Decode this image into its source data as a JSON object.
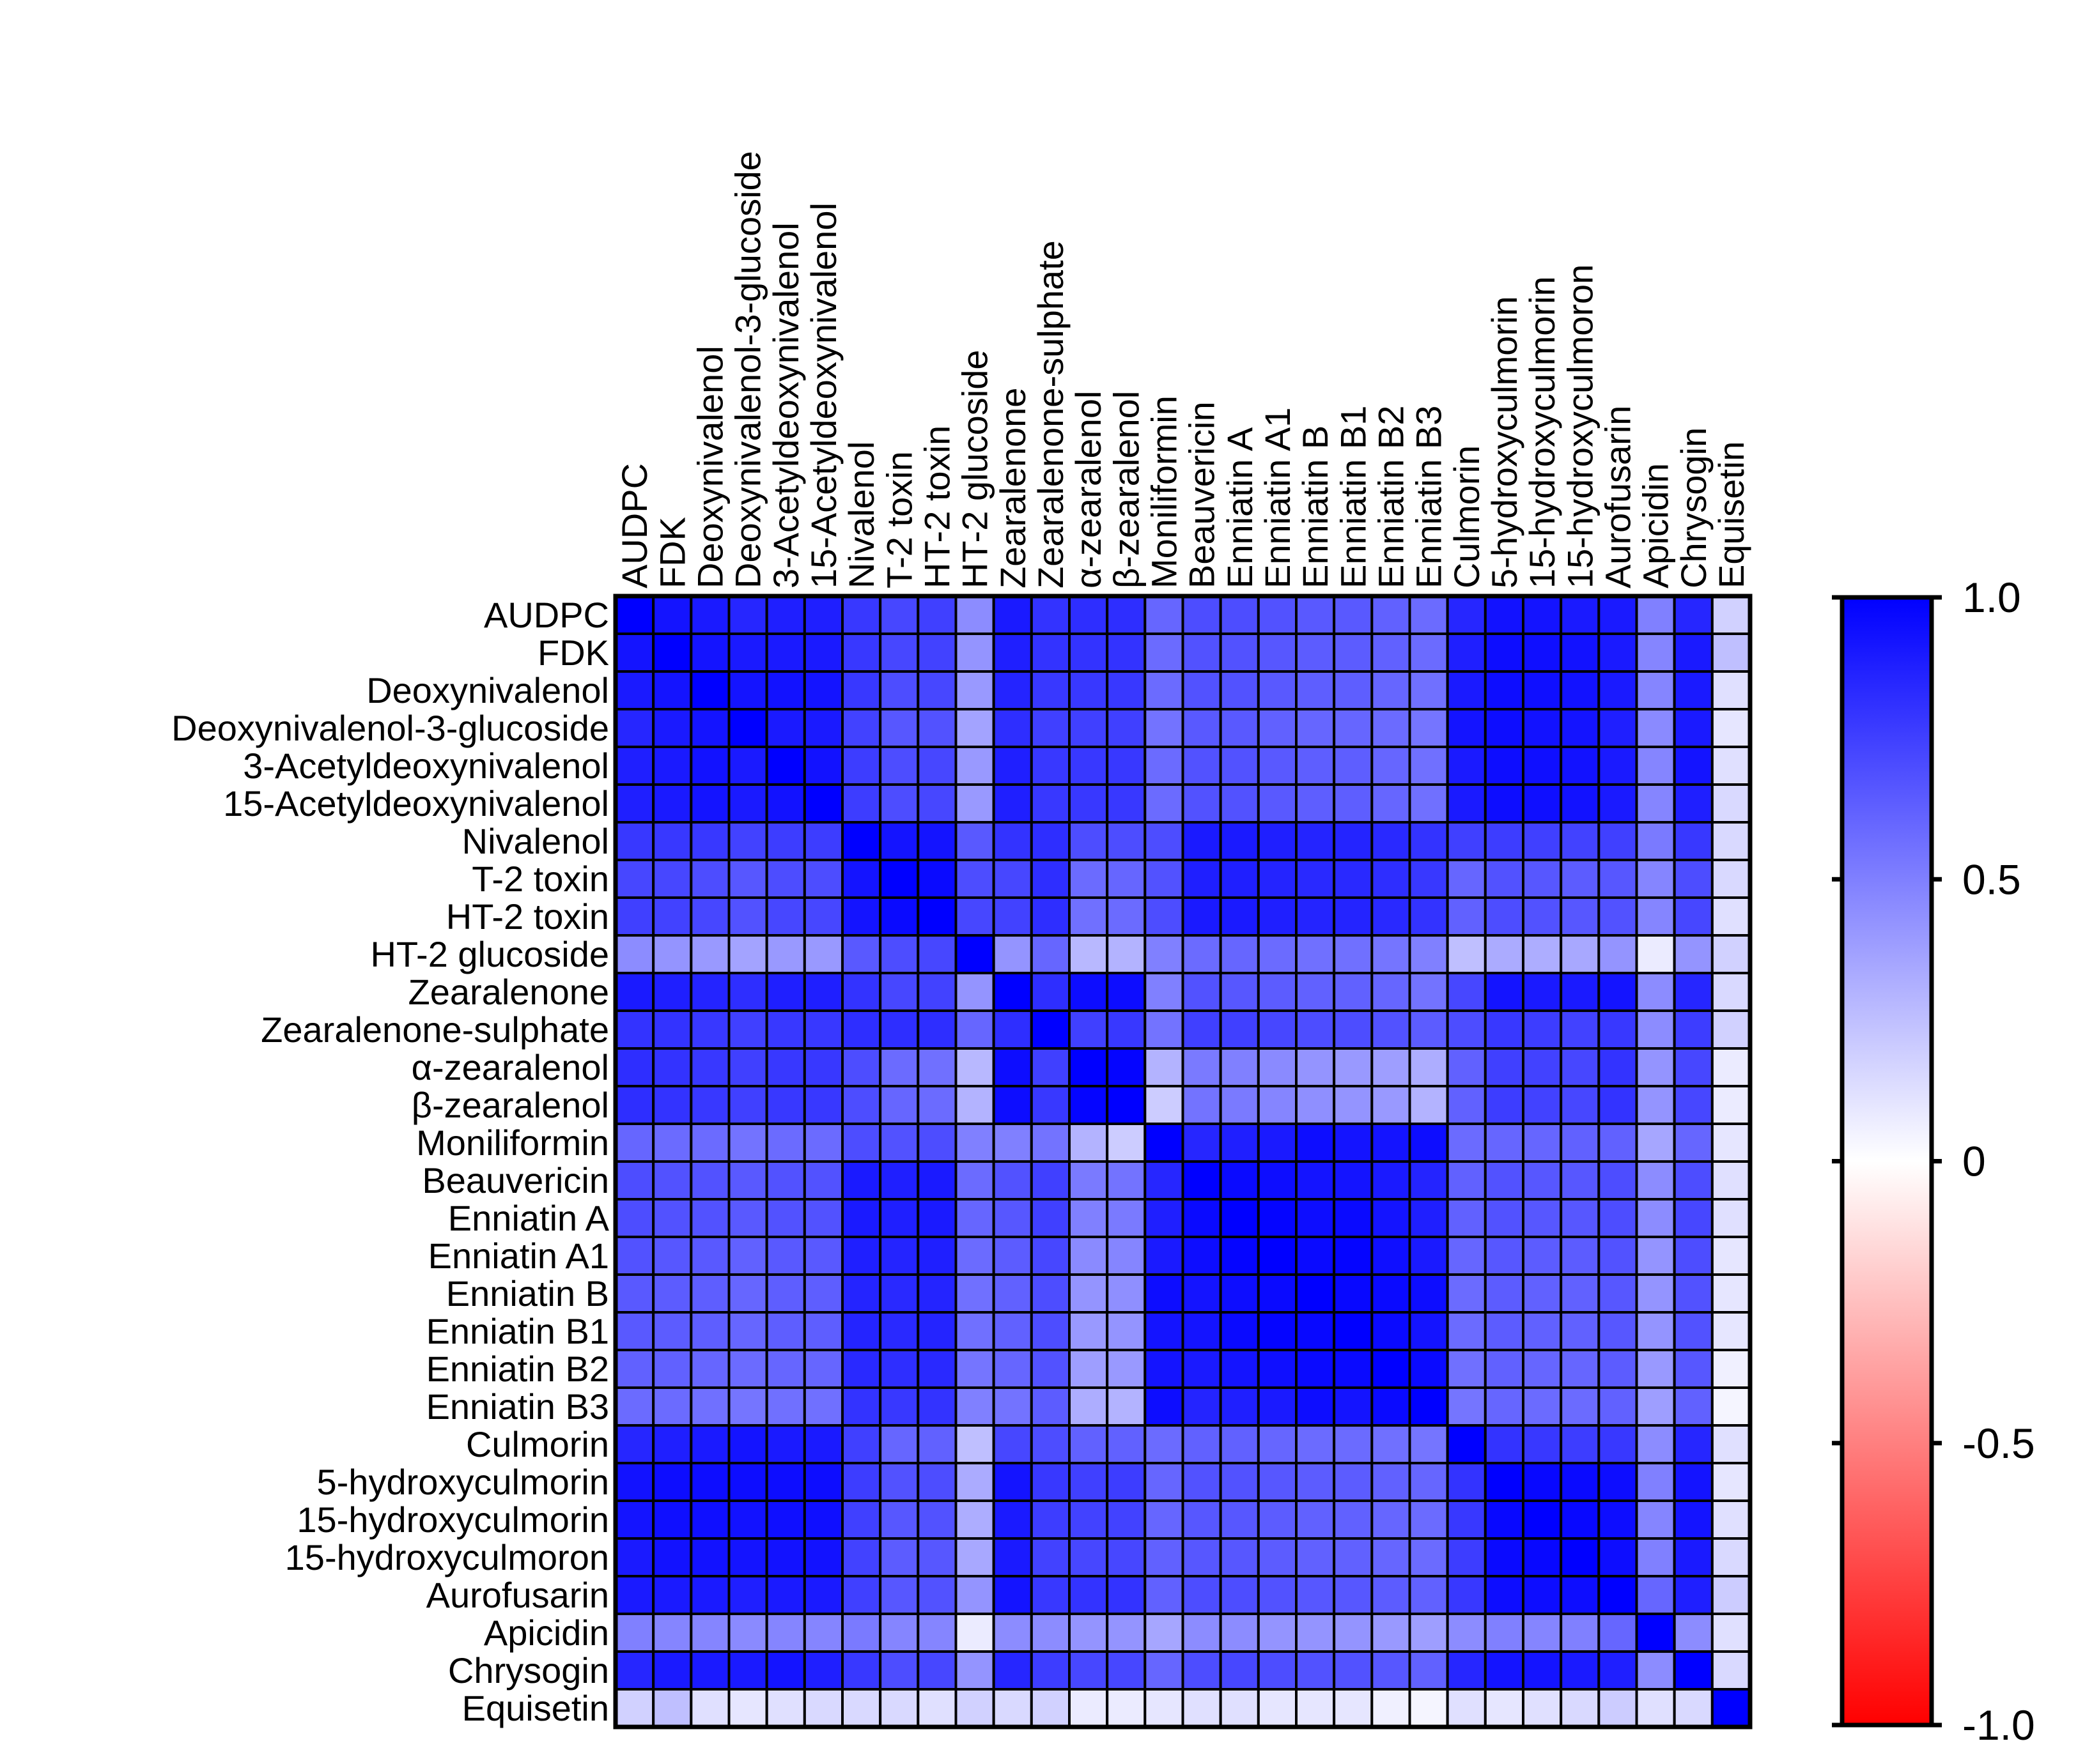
{
  "chart_data": {
    "type": "heatmap",
    "title": "",
    "labels": [
      "AUDPC",
      "FDK",
      "Deoxynivalenol",
      "Deoxynivalenol-3-glucoside",
      "3-Acetyldeoxynivalenol",
      "15-Acetyldeoxynivalenol",
      "Nivalenol",
      "T-2 toxin",
      "HT-2 toxin",
      "HT-2 glucoside",
      "Zearalenone",
      "Zearalenone-sulphate",
      "α-zearalenol",
      "β-zearalenol",
      "Moniliformin",
      "Beauvericin",
      "Enniatin A",
      "Enniatin A1",
      "Enniatin B",
      "Enniatin B1",
      "Enniatin B2",
      "Enniatin B3",
      "Culmorin",
      "5-hydroxyculmorin",
      "15-hydroxyculmorin",
      "15-hydroxyculmoron",
      "Aurofusarin",
      "Apicidin",
      "Chrysogin",
      "Equisetin"
    ],
    "values": [
      [
        1.0,
        0.92,
        0.9,
        0.85,
        0.88,
        0.88,
        0.78,
        0.72,
        0.75,
        0.45,
        0.9,
        0.8,
        0.82,
        0.82,
        0.6,
        0.7,
        0.7,
        0.68,
        0.65,
        0.65,
        0.62,
        0.58,
        0.85,
        0.93,
        0.92,
        0.9,
        0.9,
        0.5,
        0.85,
        0.18
      ],
      [
        0.92,
        1.0,
        0.92,
        0.9,
        0.9,
        0.9,
        0.78,
        0.72,
        0.74,
        0.42,
        0.88,
        0.8,
        0.8,
        0.8,
        0.58,
        0.68,
        0.68,
        0.66,
        0.64,
        0.64,
        0.62,
        0.58,
        0.88,
        0.95,
        0.94,
        0.93,
        0.9,
        0.48,
        0.9,
        0.25
      ],
      [
        0.9,
        0.92,
        1.0,
        0.92,
        0.93,
        0.92,
        0.78,
        0.7,
        0.72,
        0.4,
        0.86,
        0.78,
        0.78,
        0.78,
        0.58,
        0.68,
        0.68,
        0.65,
        0.63,
        0.63,
        0.6,
        0.56,
        0.9,
        0.95,
        0.94,
        0.93,
        0.9,
        0.48,
        0.9,
        0.12
      ],
      [
        0.85,
        0.9,
        0.92,
        1.0,
        0.9,
        0.9,
        0.74,
        0.66,
        0.68,
        0.36,
        0.82,
        0.75,
        0.75,
        0.75,
        0.55,
        0.65,
        0.65,
        0.62,
        0.6,
        0.6,
        0.58,
        0.54,
        0.92,
        0.95,
        0.93,
        0.92,
        0.88,
        0.46,
        0.9,
        0.1
      ],
      [
        0.88,
        0.9,
        0.93,
        0.9,
        1.0,
        0.93,
        0.76,
        0.7,
        0.72,
        0.4,
        0.88,
        0.78,
        0.78,
        0.78,
        0.58,
        0.68,
        0.68,
        0.65,
        0.63,
        0.63,
        0.6,
        0.56,
        0.9,
        0.95,
        0.94,
        0.93,
        0.9,
        0.48,
        0.92,
        0.12
      ],
      [
        0.88,
        0.9,
        0.92,
        0.9,
        0.93,
        1.0,
        0.76,
        0.7,
        0.72,
        0.4,
        0.88,
        0.78,
        0.78,
        0.78,
        0.58,
        0.68,
        0.68,
        0.65,
        0.63,
        0.63,
        0.6,
        0.56,
        0.9,
        0.95,
        0.94,
        0.93,
        0.9,
        0.48,
        0.88,
        0.15
      ],
      [
        0.78,
        0.78,
        0.78,
        0.74,
        0.76,
        0.76,
        1.0,
        0.92,
        0.92,
        0.65,
        0.8,
        0.82,
        0.7,
        0.7,
        0.7,
        0.9,
        0.9,
        0.88,
        0.86,
        0.86,
        0.84,
        0.8,
        0.75,
        0.76,
        0.75,
        0.74,
        0.75,
        0.52,
        0.78,
        0.15
      ],
      [
        0.72,
        0.72,
        0.7,
        0.66,
        0.7,
        0.7,
        0.92,
        1.0,
        0.96,
        0.7,
        0.72,
        0.82,
        0.58,
        0.6,
        0.68,
        0.88,
        0.88,
        0.86,
        0.84,
        0.84,
        0.82,
        0.78,
        0.6,
        0.68,
        0.66,
        0.64,
        0.66,
        0.48,
        0.7,
        0.15
      ],
      [
        0.75,
        0.74,
        0.72,
        0.68,
        0.72,
        0.72,
        0.92,
        0.96,
        1.0,
        0.72,
        0.74,
        0.82,
        0.56,
        0.58,
        0.7,
        0.9,
        0.9,
        0.88,
        0.86,
        0.86,
        0.84,
        0.8,
        0.62,
        0.7,
        0.68,
        0.66,
        0.68,
        0.48,
        0.72,
        0.12
      ],
      [
        0.45,
        0.42,
        0.4,
        0.36,
        0.4,
        0.4,
        0.65,
        0.7,
        0.72,
        1.0,
        0.42,
        0.6,
        0.28,
        0.3,
        0.5,
        0.58,
        0.6,
        0.58,
        0.56,
        0.56,
        0.54,
        0.5,
        0.25,
        0.33,
        0.32,
        0.34,
        0.42,
        0.08,
        0.42,
        0.18
      ],
      [
        0.9,
        0.88,
        0.86,
        0.82,
        0.88,
        0.88,
        0.8,
        0.72,
        0.74,
        0.42,
        1.0,
        0.82,
        0.95,
        0.95,
        0.5,
        0.68,
        0.66,
        0.64,
        0.62,
        0.62,
        0.6,
        0.55,
        0.72,
        0.92,
        0.9,
        0.9,
        0.92,
        0.45,
        0.85,
        0.15
      ],
      [
        0.8,
        0.8,
        0.78,
        0.75,
        0.78,
        0.78,
        0.82,
        0.82,
        0.82,
        0.6,
        0.82,
        1.0,
        0.75,
        0.78,
        0.55,
        0.75,
        0.75,
        0.72,
        0.7,
        0.7,
        0.68,
        0.64,
        0.7,
        0.78,
        0.76,
        0.74,
        0.78,
        0.45,
        0.76,
        0.18
      ],
      [
        0.82,
        0.8,
        0.78,
        0.75,
        0.78,
        0.78,
        0.7,
        0.58,
        0.56,
        0.28,
        0.95,
        0.75,
        1.0,
        0.98,
        0.3,
        0.52,
        0.5,
        0.46,
        0.42,
        0.4,
        0.38,
        0.32,
        0.62,
        0.75,
        0.74,
        0.72,
        0.8,
        0.42,
        0.72,
        0.08
      ],
      [
        0.82,
        0.8,
        0.78,
        0.75,
        0.78,
        0.78,
        0.7,
        0.6,
        0.58,
        0.3,
        0.95,
        0.78,
        0.98,
        1.0,
        0.2,
        0.55,
        0.52,
        0.48,
        0.44,
        0.42,
        0.4,
        0.3,
        0.62,
        0.76,
        0.74,
        0.72,
        0.8,
        0.42,
        0.72,
        0.08
      ],
      [
        0.6,
        0.58,
        0.58,
        0.55,
        0.58,
        0.58,
        0.7,
        0.68,
        0.7,
        0.5,
        0.5,
        0.55,
        0.3,
        0.2,
        1.0,
        0.85,
        0.88,
        0.9,
        0.95,
        0.92,
        0.92,
        0.95,
        0.58,
        0.6,
        0.6,
        0.62,
        0.62,
        0.35,
        0.6,
        0.1
      ],
      [
        0.7,
        0.68,
        0.68,
        0.65,
        0.68,
        0.68,
        0.9,
        0.88,
        0.9,
        0.58,
        0.68,
        0.75,
        0.52,
        0.55,
        0.85,
        1.0,
        0.96,
        0.95,
        0.92,
        0.92,
        0.9,
        0.86,
        0.62,
        0.68,
        0.66,
        0.66,
        0.7,
        0.45,
        0.7,
        0.12
      ],
      [
        0.7,
        0.68,
        0.68,
        0.65,
        0.68,
        0.68,
        0.9,
        0.88,
        0.9,
        0.6,
        0.66,
        0.75,
        0.5,
        0.52,
        0.88,
        0.96,
        1.0,
        0.98,
        0.95,
        0.96,
        0.92,
        0.88,
        0.62,
        0.68,
        0.66,
        0.66,
        0.7,
        0.45,
        0.72,
        0.12
      ],
      [
        0.68,
        0.66,
        0.65,
        0.62,
        0.65,
        0.65,
        0.88,
        0.86,
        0.88,
        0.58,
        0.64,
        0.72,
        0.46,
        0.48,
        0.9,
        0.95,
        0.98,
        1.0,
        0.96,
        0.98,
        0.94,
        0.9,
        0.6,
        0.66,
        0.64,
        0.64,
        0.68,
        0.42,
        0.7,
        0.1
      ],
      [
        0.65,
        0.64,
        0.63,
        0.6,
        0.63,
        0.63,
        0.86,
        0.84,
        0.86,
        0.56,
        0.62,
        0.7,
        0.42,
        0.44,
        0.95,
        0.92,
        0.95,
        0.96,
        1.0,
        0.97,
        0.96,
        0.95,
        0.58,
        0.64,
        0.62,
        0.62,
        0.66,
        0.42,
        0.68,
        0.1
      ],
      [
        0.65,
        0.64,
        0.63,
        0.6,
        0.63,
        0.63,
        0.86,
        0.84,
        0.86,
        0.56,
        0.62,
        0.7,
        0.4,
        0.42,
        0.92,
        0.92,
        0.96,
        0.98,
        0.97,
        1.0,
        0.96,
        0.92,
        0.58,
        0.64,
        0.62,
        0.62,
        0.66,
        0.42,
        0.68,
        0.1
      ],
      [
        0.62,
        0.62,
        0.6,
        0.58,
        0.6,
        0.6,
        0.84,
        0.82,
        0.84,
        0.54,
        0.6,
        0.68,
        0.38,
        0.4,
        0.92,
        0.9,
        0.92,
        0.94,
        0.96,
        0.96,
        1.0,
        0.96,
        0.56,
        0.62,
        0.6,
        0.6,
        0.64,
        0.4,
        0.66,
        0.06
      ],
      [
        0.58,
        0.58,
        0.56,
        0.54,
        0.56,
        0.56,
        0.8,
        0.78,
        0.8,
        0.5,
        0.55,
        0.64,
        0.32,
        0.3,
        0.95,
        0.86,
        0.88,
        0.9,
        0.95,
        0.92,
        0.96,
        1.0,
        0.54,
        0.6,
        0.58,
        0.58,
        0.62,
        0.38,
        0.62,
        0.04
      ],
      [
        0.85,
        0.88,
        0.9,
        0.92,
        0.9,
        0.9,
        0.75,
        0.6,
        0.62,
        0.25,
        0.72,
        0.7,
        0.62,
        0.62,
        0.58,
        0.62,
        0.62,
        0.6,
        0.58,
        0.58,
        0.56,
        0.54,
        1.0,
        0.8,
        0.78,
        0.76,
        0.78,
        0.45,
        0.85,
        0.12
      ],
      [
        0.93,
        0.95,
        0.95,
        0.95,
        0.95,
        0.95,
        0.76,
        0.68,
        0.7,
        0.33,
        0.92,
        0.78,
        0.75,
        0.76,
        0.6,
        0.68,
        0.68,
        0.66,
        0.64,
        0.64,
        0.62,
        0.6,
        0.8,
        1.0,
        0.97,
        0.96,
        0.95,
        0.5,
        0.92,
        0.1
      ],
      [
        0.92,
        0.94,
        0.94,
        0.93,
        0.94,
        0.94,
        0.75,
        0.66,
        0.68,
        0.32,
        0.9,
        0.76,
        0.74,
        0.74,
        0.6,
        0.66,
        0.66,
        0.64,
        0.62,
        0.62,
        0.6,
        0.58,
        0.78,
        0.97,
        1.0,
        0.97,
        0.95,
        0.48,
        0.92,
        0.12
      ],
      [
        0.9,
        0.93,
        0.93,
        0.92,
        0.93,
        0.93,
        0.74,
        0.64,
        0.66,
        0.34,
        0.9,
        0.74,
        0.72,
        0.72,
        0.62,
        0.66,
        0.66,
        0.64,
        0.62,
        0.62,
        0.6,
        0.58,
        0.76,
        0.96,
        0.97,
        1.0,
        0.95,
        0.5,
        0.9,
        0.15
      ],
      [
        0.9,
        0.9,
        0.9,
        0.88,
        0.9,
        0.9,
        0.75,
        0.66,
        0.68,
        0.42,
        0.92,
        0.78,
        0.8,
        0.8,
        0.62,
        0.7,
        0.7,
        0.68,
        0.66,
        0.66,
        0.64,
        0.62,
        0.78,
        0.95,
        0.95,
        0.95,
        1.0,
        0.6,
        0.88,
        0.2
      ],
      [
        0.5,
        0.48,
        0.48,
        0.46,
        0.48,
        0.48,
        0.52,
        0.48,
        0.48,
        0.08,
        0.45,
        0.45,
        0.42,
        0.42,
        0.35,
        0.45,
        0.45,
        0.42,
        0.42,
        0.42,
        0.4,
        0.38,
        0.45,
        0.5,
        0.48,
        0.5,
        0.6,
        1.0,
        0.45,
        0.12
      ],
      [
        0.85,
        0.9,
        0.9,
        0.9,
        0.92,
        0.88,
        0.78,
        0.7,
        0.72,
        0.42,
        0.85,
        0.76,
        0.72,
        0.72,
        0.6,
        0.7,
        0.72,
        0.7,
        0.68,
        0.68,
        0.66,
        0.62,
        0.85,
        0.92,
        0.92,
        0.9,
        0.88,
        0.45,
        1.0,
        0.15
      ],
      [
        0.18,
        0.25,
        0.12,
        0.1,
        0.12,
        0.15,
        0.15,
        0.15,
        0.12,
        0.18,
        0.15,
        0.18,
        0.08,
        0.08,
        0.1,
        0.12,
        0.12,
        0.1,
        0.1,
        0.1,
        0.06,
        0.04,
        0.12,
        0.1,
        0.12,
        0.15,
        0.2,
        0.12,
        0.15,
        1.0
      ]
    ],
    "colorbar": {
      "min": -1.0,
      "max": 1.0,
      "ticks": [
        1.0,
        0.5,
        0,
        -0.5,
        -1.0
      ],
      "tick_labels": [
        "1.0",
        "0.5",
        "0",
        "-0.5",
        "-1.0"
      ]
    },
    "colors": {
      "positive": "#0000ff",
      "zero": "#ffffff",
      "negative": "#ff0000",
      "border": "#000000"
    }
  }
}
